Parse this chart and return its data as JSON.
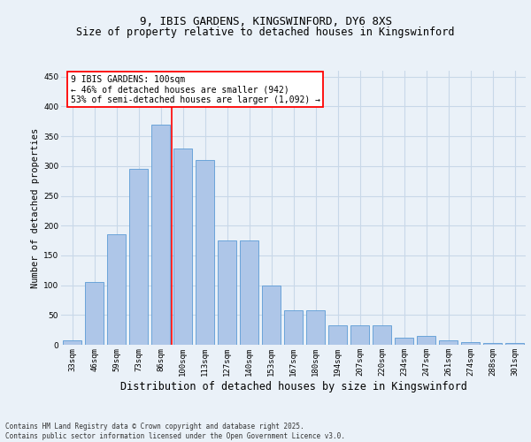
{
  "title1": "9, IBIS GARDENS, KINGSWINFORD, DY6 8XS",
  "title2": "Size of property relative to detached houses in Kingswinford",
  "xlabel": "Distribution of detached houses by size in Kingswinford",
  "ylabel": "Number of detached properties",
  "categories": [
    "33sqm",
    "46sqm",
    "59sqm",
    "73sqm",
    "86sqm",
    "100sqm",
    "113sqm",
    "127sqm",
    "140sqm",
    "153sqm",
    "167sqm",
    "180sqm",
    "194sqm",
    "207sqm",
    "220sqm",
    "234sqm",
    "247sqm",
    "261sqm",
    "274sqm",
    "288sqm",
    "301sqm"
  ],
  "values": [
    8,
    105,
    185,
    295,
    370,
    330,
    310,
    175,
    175,
    100,
    58,
    58,
    33,
    33,
    33,
    12,
    15,
    8,
    5,
    3,
    3
  ],
  "bar_color": "#aec6e8",
  "bar_edge_color": "#5b9bd5",
  "grid_color": "#c8d8e8",
  "vline_color": "red",
  "vline_x": 4.5,
  "annotation_text": "9 IBIS GARDENS: 100sqm\n← 46% of detached houses are smaller (942)\n53% of semi-detached houses are larger (1,092) →",
  "annotation_box_color": "white",
  "annotation_box_edge_color": "red",
  "ylim": [
    0,
    460
  ],
  "yticks": [
    0,
    50,
    100,
    150,
    200,
    250,
    300,
    350,
    400,
    450
  ],
  "footnote": "Contains HM Land Registry data © Crown copyright and database right 2025.\nContains public sector information licensed under the Open Government Licence v3.0.",
  "bg_color": "#eaf1f8",
  "plot_bg_color": "#eaf1f8",
  "title1_fontsize": 9,
  "title2_fontsize": 8.5,
  "ylabel_fontsize": 7.5,
  "xlabel_fontsize": 8.5,
  "tick_fontsize": 6.5,
  "annot_fontsize": 7,
  "footnote_fontsize": 5.5
}
